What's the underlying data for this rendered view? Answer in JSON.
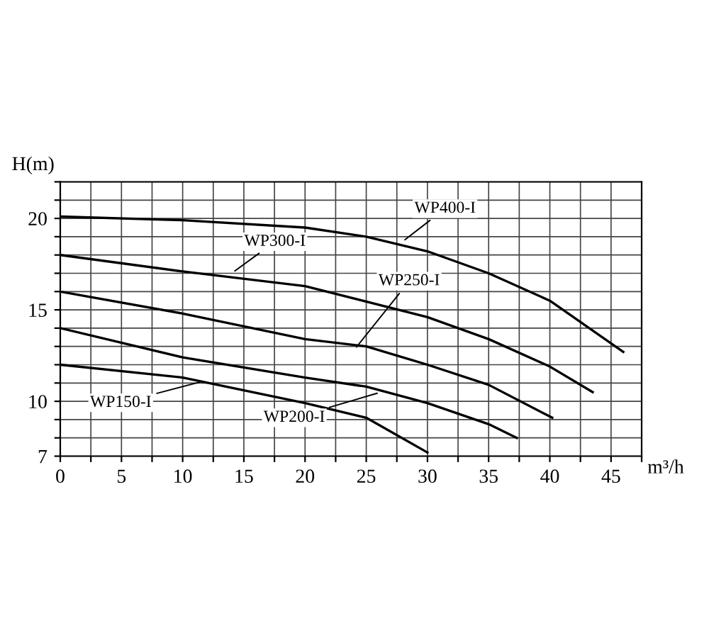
{
  "chart_data": {
    "type": "line",
    "xlabel": "m³/h",
    "ylabel": "H(m)",
    "xlim": [
      0,
      47.5
    ],
    "ylim": [
      7,
      22
    ],
    "xticks": [
      0,
      {
        "value": 2.5,
        "label": null
      },
      5,
      {
        "value": 7.5,
        "label": null
      },
      10,
      {
        "value": 12.5,
        "label": null
      },
      15,
      {
        "value": 17.5,
        "label": null
      },
      20,
      {
        "value": 22.5,
        "label": null
      },
      25,
      {
        "value": 27.5,
        "label": null
      },
      30,
      {
        "value": 32.5,
        "label": null
      },
      35,
      {
        "value": 37.5,
        "label": null
      },
      40,
      {
        "value": 42.5,
        "label": null
      },
      45,
      {
        "value": 47.5,
        "label": null
      }
    ],
    "yticks": [
      7,
      {
        "value": 8,
        "label": null
      },
      {
        "value": 9,
        "label": null
      },
      10,
      {
        "value": 11,
        "label": null
      },
      {
        "value": 12,
        "label": null
      },
      {
        "value": 13,
        "label": null
      },
      {
        "value": 14,
        "label": null
      },
      15,
      {
        "value": 16,
        "label": null
      },
      {
        "value": 17,
        "label": null
      },
      {
        "value": 18,
        "label": null
      },
      {
        "value": 19,
        "label": null
      },
      20,
      {
        "value": 21,
        "label": null
      },
      {
        "value": 22,
        "label": null
      }
    ],
    "grid": true,
    "marker": "none",
    "line_style": "solid",
    "series": [
      {
        "color": "#000000",
        "x": [
          0,
          10,
          20,
          25,
          30,
          35,
          40,
          46
        ],
        "values": [
          20.1,
          19.9,
          19.5,
          19.0,
          18.2,
          17.0,
          15.5,
          12.7
        ]
      },
      {
        "color": "#000000",
        "x": [
          0,
          10,
          20,
          30,
          35,
          40,
          43.5
        ],
        "values": [
          18.0,
          17.1,
          16.3,
          14.6,
          13.4,
          11.9,
          10.5
        ]
      },
      {
        "color": "#000000",
        "x": [
          0,
          10,
          20,
          25,
          30,
          35,
          40.2
        ],
        "values": [
          16.0,
          14.8,
          13.4,
          13.0,
          12.0,
          10.9,
          9.1
        ]
      },
      {
        "color": "#000000",
        "x": [
          0,
          10,
          20,
          25,
          30,
          35,
          37.3
        ],
        "values": [
          14.0,
          12.4,
          11.3,
          10.8,
          9.9,
          8.75,
          8.0
        ]
      },
      {
        "color": "#000000",
        "x": [
          0,
          10,
          20,
          25,
          30
        ],
        "values": [
          12.0,
          11.3,
          9.9,
          9.1,
          7.2
        ]
      }
    ],
    "annotations": [
      {
        "text": "WP400-I",
        "x": 27.9,
        "y": 18.7
      },
      {
        "text": "WP300-I",
        "x": 14,
        "y": 17
      },
      {
        "text": "WP250-I",
        "x": 24,
        "y": 12.8
      },
      {
        "text": "WP200-I",
        "x": 26.2,
        "y": 10.5
      },
      {
        "text": "WP150-I",
        "x": 11.7,
        "y": 11.1
      }
    ]
  }
}
